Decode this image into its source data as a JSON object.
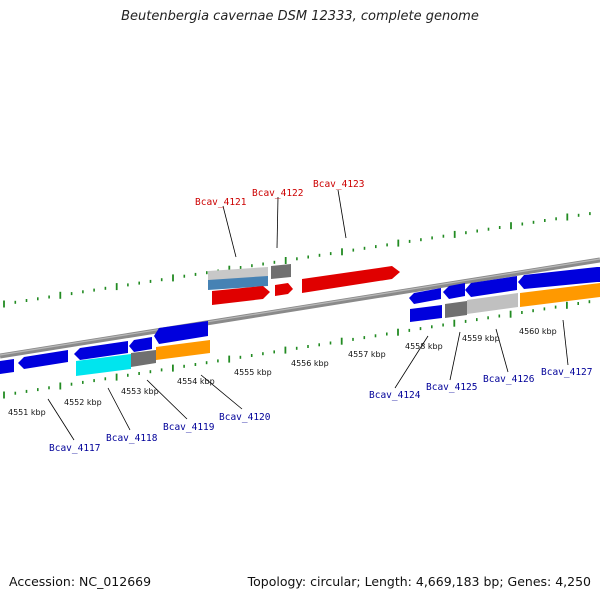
{
  "title": "Beutenbergia cavernae DSM 12333, complete genome",
  "footer": {
    "accession": "Accession: NC_012669",
    "summary": "Topology: circular; Length: 4,669,183 bp; Genes: 4,250"
  },
  "scale_labels": [
    "4551 kbp",
    "4552 kbp",
    "4553 kbp",
    "4554 kbp",
    "4555 kbp",
    "4556 kbp",
    "4557 kbp",
    "4558 kbp",
    "4559 kbp",
    "4560 kbp"
  ],
  "genes_top": [
    "Bcav_4121",
    "Bcav_4122",
    "Bcav_4123"
  ],
  "genes_bottom": [
    "Bcav_4117",
    "Bcav_4118",
    "Bcav_4119",
    "Bcav_4120",
    "Bcav_4124",
    "Bcav_4125",
    "Bcav_4126",
    "Bcav_4127"
  ],
  "colors": {
    "forward_strand_gene": "#e00000",
    "reverse_strand_gene": "#0000dd",
    "pseudo_gray": "#707070",
    "light_gray": "#c0c0c0",
    "orange": "#ff9900",
    "cyan": "#00e5ee",
    "steel_blue": "#4682b4",
    "tick_green": "#228b22",
    "backbone": "#888888"
  }
}
